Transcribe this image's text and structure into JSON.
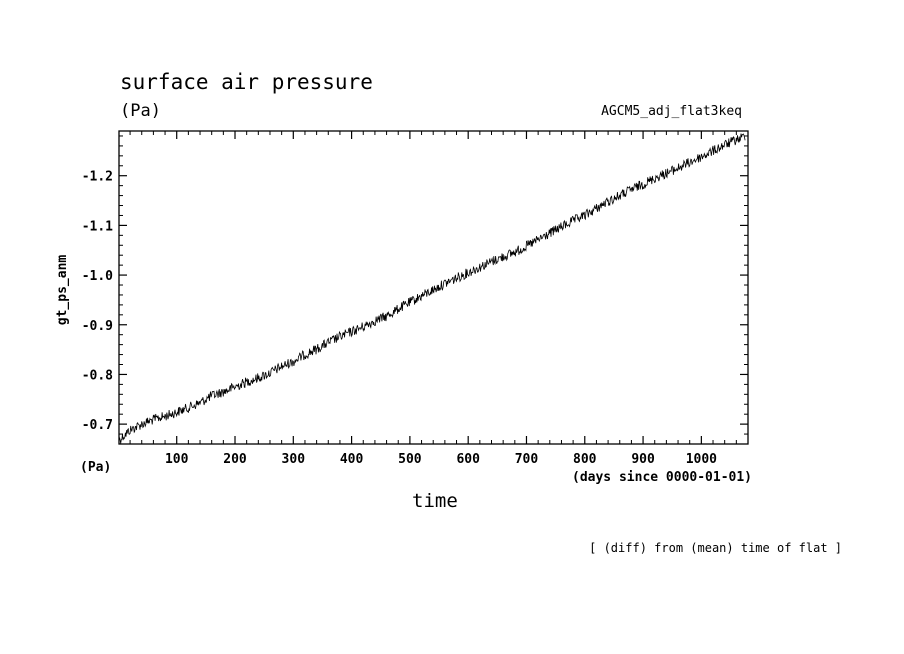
{
  "figure": {
    "title": "surface air pressure",
    "unit_top": "(Pa)",
    "run_name": "AGCM5_adj_flat3keq",
    "unit_bottom": "(Pa)",
    "x_units": "(days since 0000-01-01)",
    "note": "[ (diff) from (mean) time of flat ]"
  },
  "chart_data": {
    "type": "line",
    "title": "surface air pressure",
    "xlabel": "time",
    "ylabel": "gt_ps_anm",
    "xlim": [
      1,
      1080
    ],
    "ylim": [
      -0.66,
      -1.29
    ],
    "y_axis_inverted": true,
    "x_ticks": [
      100,
      200,
      300,
      400,
      500,
      600,
      700,
      800,
      900,
      1000
    ],
    "x_tick_labels": [
      "100",
      "200",
      "300",
      "400",
      "500",
      "600",
      "700",
      "800",
      "900",
      "1000"
    ],
    "y_ticks": [
      -0.7,
      -0.8,
      -0.9,
      -1.0,
      -1.1,
      -1.2
    ],
    "y_tick_labels": [
      "-0.7",
      "-0.8",
      "-0.9",
      "-1.0",
      "-1.1",
      "-1.2"
    ],
    "grid": false,
    "series": [
      {
        "color": "#000000",
        "x": [
          1,
          20,
          40,
          60,
          80,
          100,
          120,
          140,
          160,
          180,
          200,
          220,
          240,
          260,
          280,
          300,
          320,
          340,
          360,
          380,
          400,
          420,
          440,
          460,
          480,
          500,
          520,
          540,
          560,
          580,
          600,
          620,
          640,
          660,
          680,
          700,
          720,
          740,
          760,
          780,
          800,
          820,
          840,
          860,
          880,
          900,
          920,
          940,
          960,
          980,
          1000,
          1020,
          1040,
          1060,
          1075
        ],
        "y": [
          -0.668,
          -0.688,
          -0.7,
          -0.709,
          -0.716,
          -0.724,
          -0.733,
          -0.743,
          -0.757,
          -0.765,
          -0.775,
          -0.785,
          -0.793,
          -0.803,
          -0.816,
          -0.826,
          -0.84,
          -0.851,
          -0.864,
          -0.876,
          -0.886,
          -0.896,
          -0.908,
          -0.917,
          -0.932,
          -0.945,
          -0.958,
          -0.97,
          -0.983,
          -0.994,
          -1.005,
          -1.016,
          -1.027,
          -1.037,
          -1.046,
          -1.058,
          -1.071,
          -1.084,
          -1.097,
          -1.109,
          -1.12,
          -1.134,
          -1.148,
          -1.16,
          -1.172,
          -1.183,
          -1.195,
          -1.205,
          -1.215,
          -1.227,
          -1.238,
          -1.25,
          -1.262,
          -1.272,
          -1.28
        ]
      }
    ]
  }
}
